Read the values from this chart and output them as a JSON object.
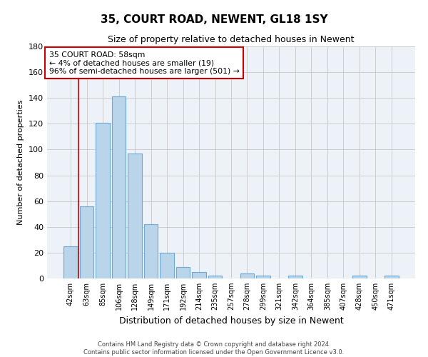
{
  "title": "35, COURT ROAD, NEWENT, GL18 1SY",
  "subtitle": "Size of property relative to detached houses in Newent",
  "xlabel": "Distribution of detached houses by size in Newent",
  "ylabel": "Number of detached properties",
  "bar_color": "#bad4ea",
  "bar_edge_color": "#6aaad4",
  "background_color": "#edf2f9",
  "grid_color": "#cccccc",
  "categories": [
    "42sqm",
    "63sqm",
    "85sqm",
    "106sqm",
    "128sqm",
    "149sqm",
    "171sqm",
    "192sqm",
    "214sqm",
    "235sqm",
    "257sqm",
    "278sqm",
    "299sqm",
    "321sqm",
    "342sqm",
    "364sqm",
    "385sqm",
    "407sqm",
    "428sqm",
    "450sqm",
    "471sqm"
  ],
  "values": [
    25,
    56,
    121,
    141,
    97,
    42,
    20,
    9,
    5,
    2,
    0,
    4,
    2,
    0,
    2,
    0,
    0,
    0,
    2,
    0,
    2
  ],
  "ylim": [
    0,
    180
  ],
  "yticks": [
    0,
    20,
    40,
    60,
    80,
    100,
    120,
    140,
    160,
    180
  ],
  "annotation_box_text": "35 COURT ROAD: 58sqm\n← 4% of detached houses are smaller (19)\n96% of semi-detached houses are larger (501) →",
  "annotation_box_color": "#ffffff",
  "annotation_box_edge_color": "#cc0000",
  "property_line_x": 0.5,
  "property_line_color": "#cc0000",
  "footer_line1": "Contains HM Land Registry data © Crown copyright and database right 2024.",
  "footer_line2": "Contains public sector information licensed under the Open Government Licence v3.0."
}
